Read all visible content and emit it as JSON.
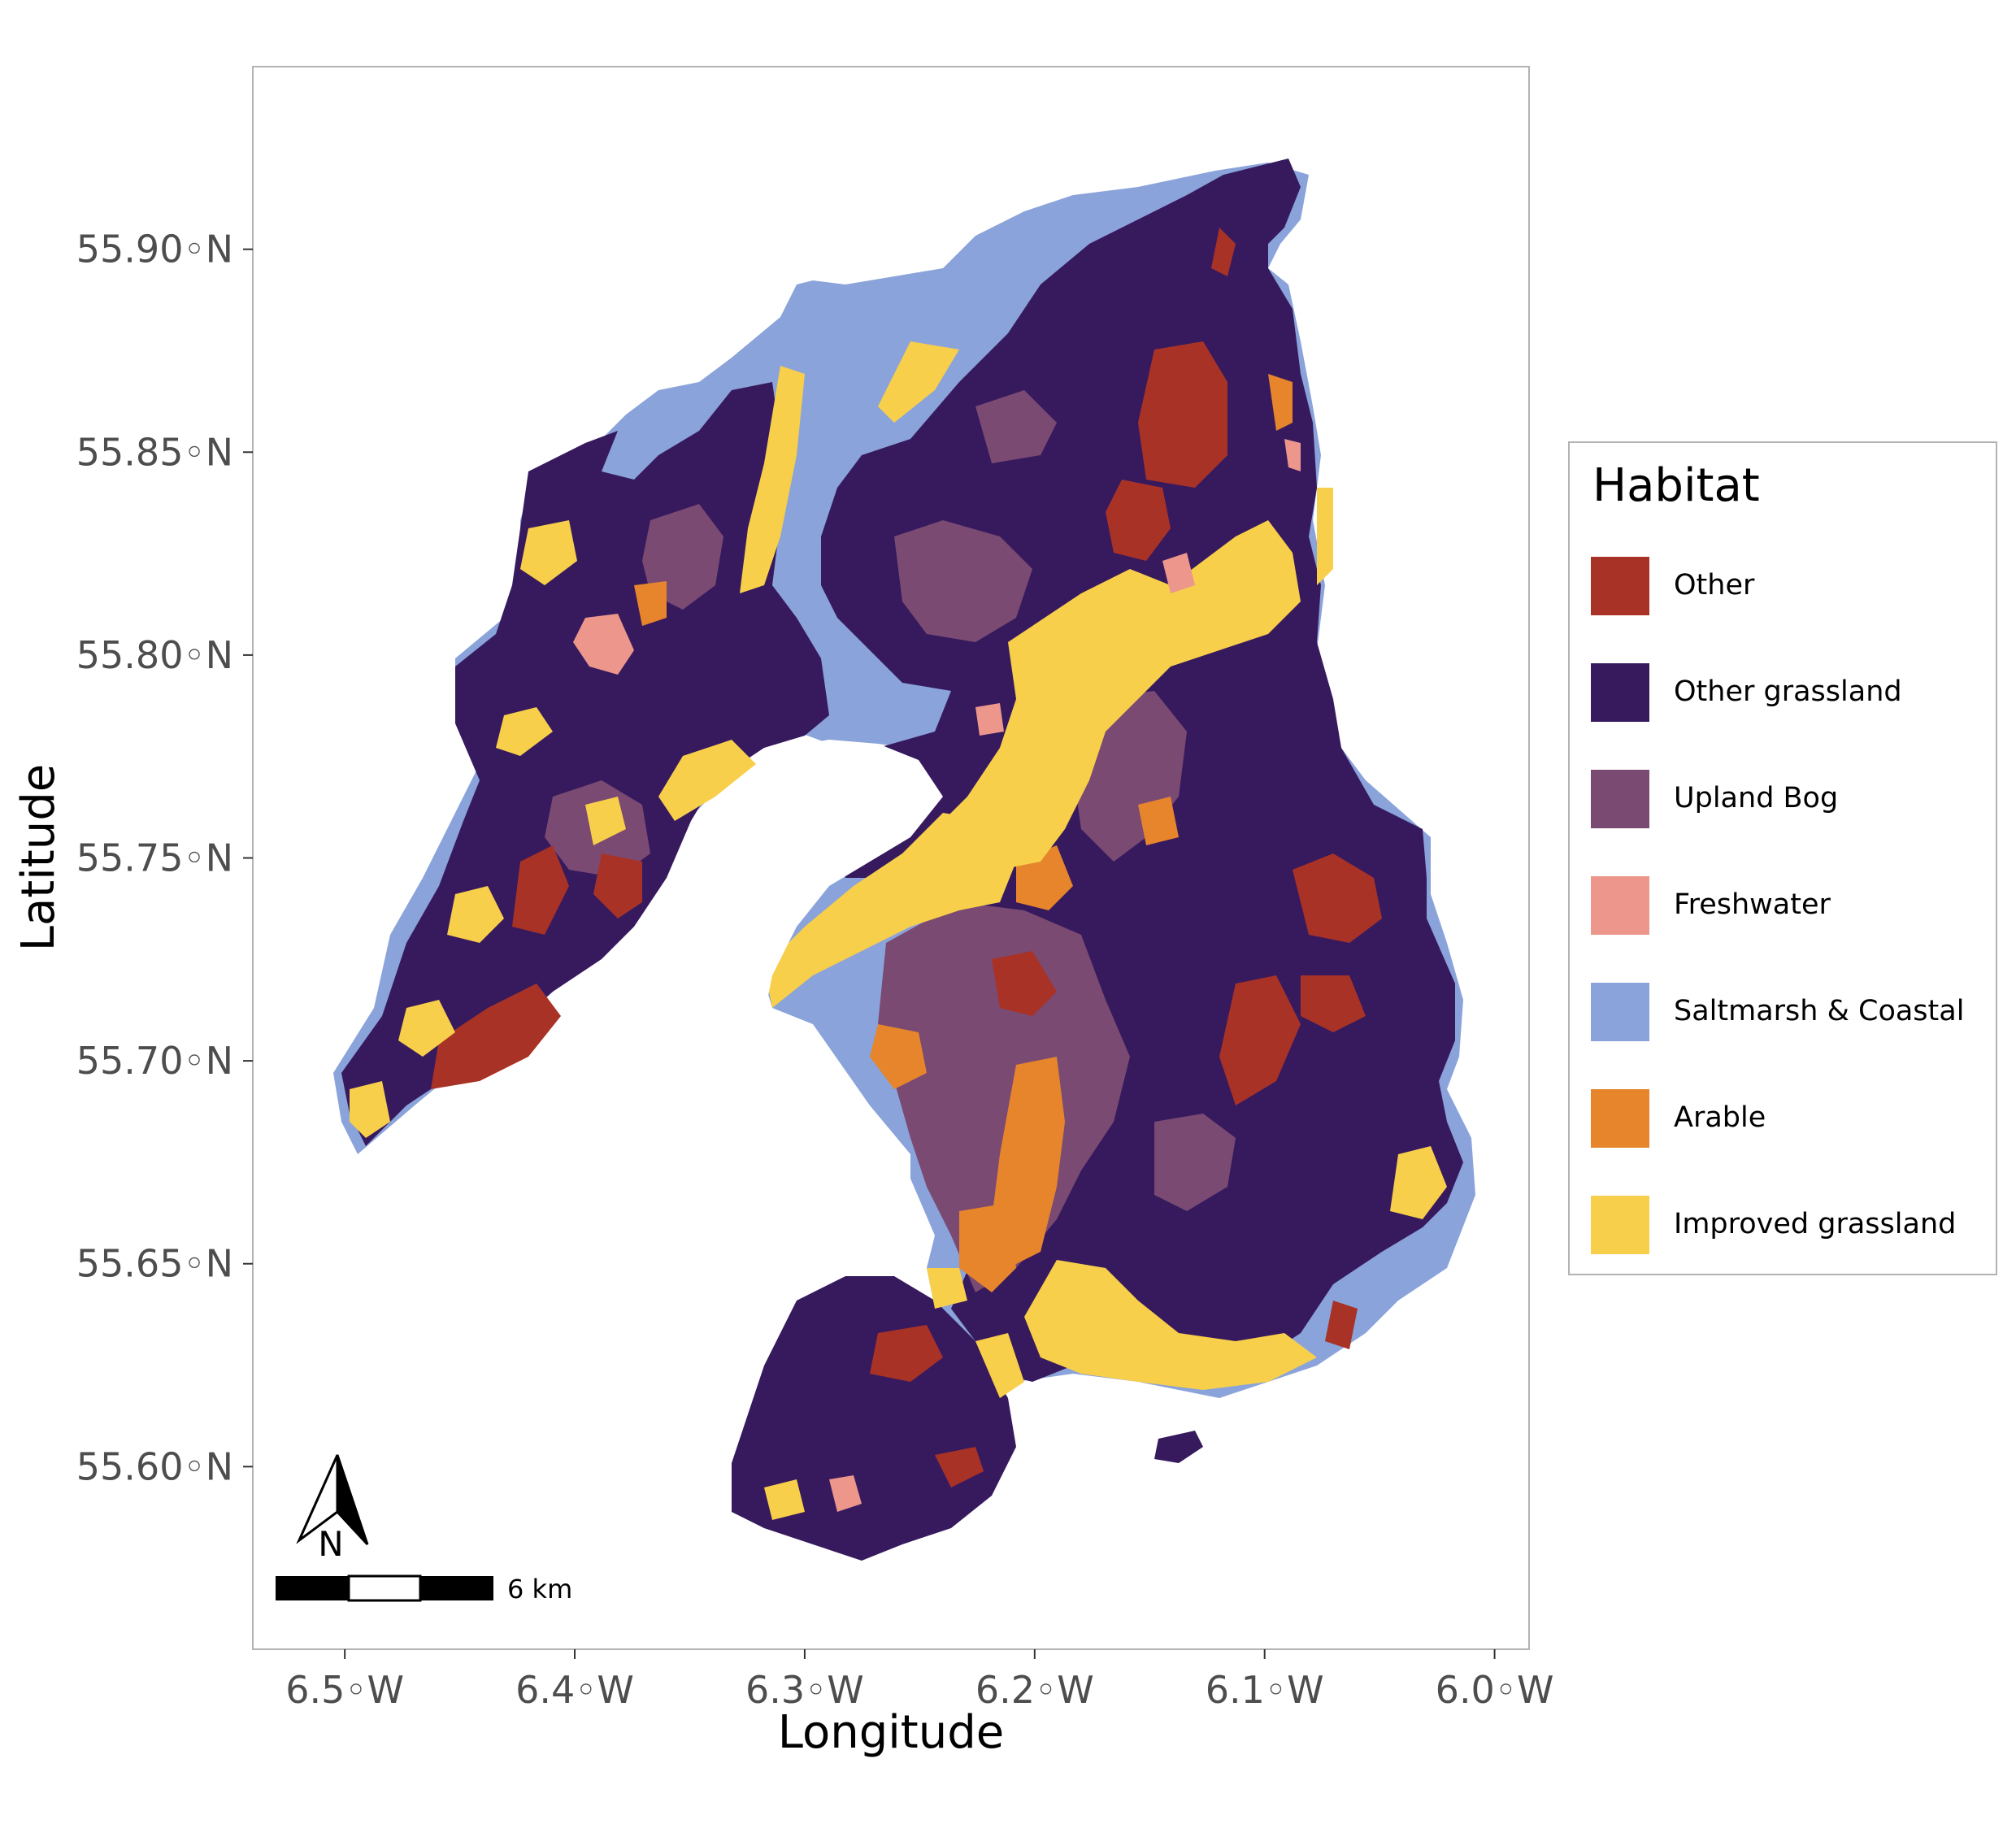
{
  "axes": {
    "xlabel": "Longitude",
    "ylabel": "Latitude",
    "x_ticks": [
      {
        "value": -6.5,
        "label": "6.5◦W"
      },
      {
        "value": -6.4,
        "label": "6.4◦W"
      },
      {
        "value": -6.3,
        "label": "6.3◦W"
      },
      {
        "value": -6.2,
        "label": "6.2◦W"
      },
      {
        "value": -6.1,
        "label": "6.1◦W"
      },
      {
        "value": -6.0,
        "label": "6.0◦W"
      }
    ],
    "y_ticks": [
      {
        "value": 55.9,
        "label": "55.90◦N"
      },
      {
        "value": 55.85,
        "label": "55.85◦N"
      },
      {
        "value": 55.8,
        "label": "55.80◦N"
      },
      {
        "value": 55.75,
        "label": "55.75◦N"
      },
      {
        "value": 55.7,
        "label": "55.70◦N"
      },
      {
        "value": 55.65,
        "label": "55.65◦N"
      },
      {
        "value": 55.6,
        "label": "55.60◦N"
      }
    ],
    "xlim": [
      -6.54,
      -5.985
    ],
    "ylim": [
      55.555,
      55.945
    ]
  },
  "legend": {
    "title": "Habitat",
    "items": [
      {
        "label": "Other",
        "color": "#a93226"
      },
      {
        "label": "Other grassland",
        "color": "#371a5e"
      },
      {
        "label": "Upland Bog",
        "color": "#7a4a72"
      },
      {
        "label": "Freshwater",
        "color": "#ec968c"
      },
      {
        "label": "Saltmarsh & Coastal",
        "color": "#8aa3da"
      },
      {
        "label": "Arable",
        "color": "#e6852b"
      },
      {
        "label": "Improved grassland",
        "color": "#f8cf4a"
      }
    ]
  },
  "scalebar": {
    "label": "6 km"
  },
  "north_arrow": {
    "label": "N"
  },
  "chart_data": {
    "type": "map",
    "xlabel": "Longitude",
    "ylabel": "Latitude",
    "xlim": [
      -6.54,
      -5.985
    ],
    "ylim": [
      55.555,
      55.945
    ],
    "grid": false,
    "legend_position": "right",
    "categories": [
      "Other",
      "Other grassland",
      "Upland Bog",
      "Freshwater",
      "Saltmarsh & Coastal",
      "Arable",
      "Improved grassland"
    ]
  }
}
